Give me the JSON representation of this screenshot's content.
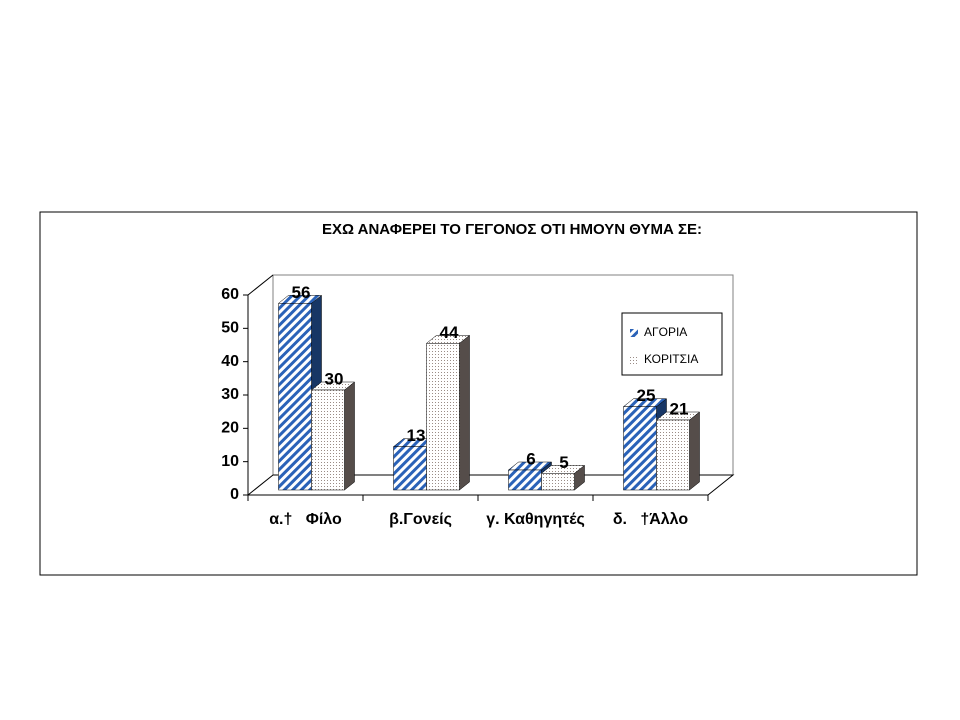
{
  "chart_data": {
    "type": "bar3d",
    "title": "ΕΧΩ ΑΝΑΦΕΡΕΙ ΤΟ ΓΕΓΟΝΟΣ ΟΤΙ ΗΜΟΥΝ ΘΥΜΑ ΣΕ:",
    "categories": [
      "α.†   Φίλο",
      "β.Γονείς",
      "γ. Καθηγητές",
      "δ.   †Άλλο"
    ],
    "series": [
      {
        "name": "ΑΓΟΡΙΑ",
        "color": "#2a62b8",
        "pattern": "stripes",
        "values": [
          56,
          13,
          6,
          25
        ]
      },
      {
        "name": "ΚΟΡΙΤΣΙΑ",
        "color": "#9a8c86",
        "pattern": "dots",
        "values": [
          30,
          44,
          5,
          21
        ]
      }
    ],
    "ylim": [
      0,
      60
    ],
    "yticks": [
      0,
      10,
      20,
      30,
      40,
      50,
      60
    ],
    "legend": "right"
  }
}
